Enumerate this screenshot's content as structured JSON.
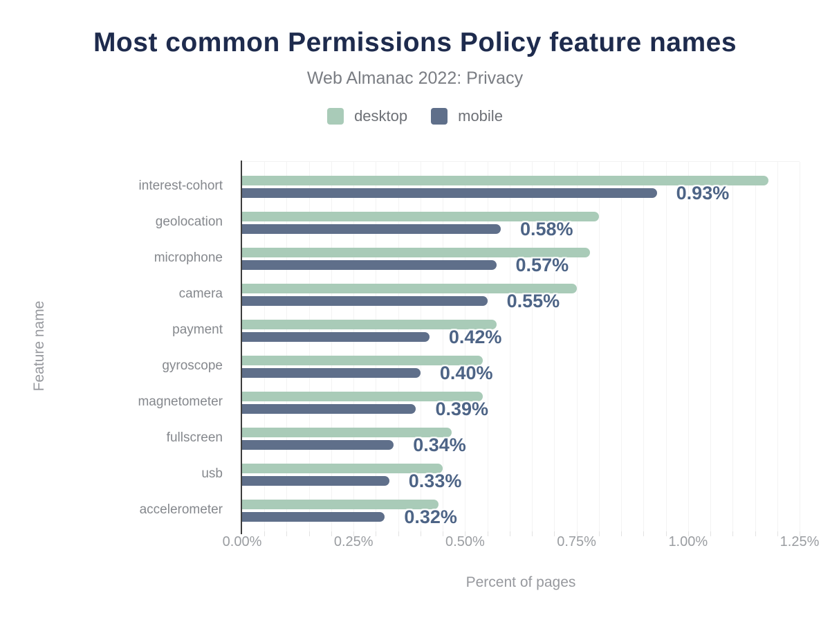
{
  "header": {
    "title": "Most common Permissions Policy feature names",
    "subtitle": "Web Almanac 2022: Privacy"
  },
  "legend": [
    {
      "label": "desktop",
      "color": "#a9cbb8"
    },
    {
      "label": "mobile",
      "color": "#5f6f8a"
    }
  ],
  "axes": {
    "x_label": "Percent of pages",
    "y_label": "Feature name",
    "x_ticks": [
      "0.00%",
      "0.25%",
      "0.50%",
      "0.75%",
      "1.00%",
      "1.25%"
    ]
  },
  "colors": {
    "title": "#1e2b4d",
    "subtitle": "#7a7d83",
    "desktop_bar": "#a9cbb8",
    "mobile_bar": "#5f6f8a",
    "value_label": "#4d6486",
    "axis_line": "#3d3d3d",
    "gridline": "#f3f3f3",
    "tick_label": "#9a9da1",
    "category_label": "#85888d"
  },
  "chart_data": {
    "type": "bar",
    "orientation": "horizontal",
    "title": "Most common Permissions Policy feature names",
    "subtitle": "Web Almanac 2022: Privacy",
    "xlabel": "Percent of pages",
    "ylabel": "Feature name",
    "xlim": [
      0,
      1.25
    ],
    "x_tick_labels": [
      "0.00%",
      "0.25%",
      "0.50%",
      "0.75%",
      "1.00%",
      "1.25%"
    ],
    "grid": {
      "minor_step_percent": 0.05,
      "color": "#f3f3f3"
    },
    "legend_position": "top",
    "categories": [
      "interest-cohort",
      "geolocation",
      "microphone",
      "camera",
      "payment",
      "gyroscope",
      "magnetometer",
      "fullscreen",
      "usb",
      "accelerometer"
    ],
    "series": [
      {
        "name": "desktop",
        "color": "#a9cbb8",
        "values": [
          1.18,
          0.8,
          0.78,
          0.75,
          0.57,
          0.54,
          0.54,
          0.47,
          0.45,
          0.44
        ]
      },
      {
        "name": "mobile",
        "color": "#5f6f8a",
        "values": [
          0.93,
          0.58,
          0.57,
          0.55,
          0.42,
          0.4,
          0.39,
          0.34,
          0.33,
          0.32
        ]
      }
    ],
    "data_labels": {
      "series": "mobile",
      "values": [
        "0.93%",
        "0.58%",
        "0.57%",
        "0.55%",
        "0.42%",
        "0.40%",
        "0.39%",
        "0.34%",
        "0.33%",
        "0.32%"
      ]
    }
  }
}
